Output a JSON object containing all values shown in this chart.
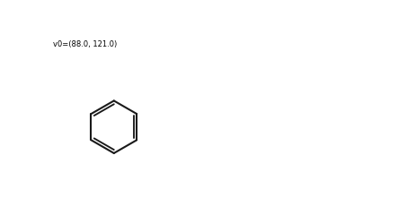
{
  "bg_color": "#ffffff",
  "line_color": "#1a1a1a",
  "line_width": 1.5,
  "figsize": [
    4.63,
    2.31
  ],
  "dpi": 100
}
